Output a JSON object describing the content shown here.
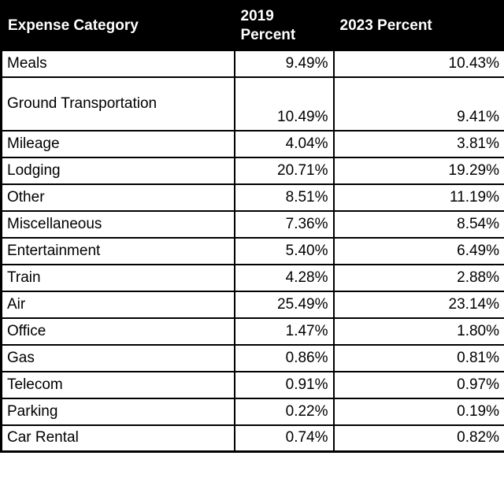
{
  "table": {
    "columns": {
      "category": "Expense Category",
      "p2019": "2019 Percent",
      "p2023": "2023 Percent"
    },
    "rows": [
      {
        "category": "Meals",
        "p2019": "9.49%",
        "p2023": "10.43%"
      },
      {
        "category": "Ground Transportation",
        "p2019": "10.49%",
        "p2023": "9.41%"
      },
      {
        "category": "Mileage",
        "p2019": "4.04%",
        "p2023": "3.81%"
      },
      {
        "category": "Lodging",
        "p2019": "20.71%",
        "p2023": "19.29%"
      },
      {
        "category": "Other",
        "p2019": "8.51%",
        "p2023": "11.19%"
      },
      {
        "category": "Miscellaneous",
        "p2019": "7.36%",
        "p2023": "8.54%"
      },
      {
        "category": "Entertainment",
        "p2019": "5.40%",
        "p2023": "6.49%"
      },
      {
        "category": "Train",
        "p2019": "4.28%",
        "p2023": "2.88%"
      },
      {
        "category": "Air",
        "p2019": "25.49%",
        "p2023": "23.14%"
      },
      {
        "category": "Office",
        "p2019": "1.47%",
        "p2023": "1.80%"
      },
      {
        "category": "Gas",
        "p2019": "0.86%",
        "p2023": "0.81%"
      },
      {
        "category": "Telecom",
        "p2019": "0.91%",
        "p2023": "0.97%"
      },
      {
        "category": "Parking",
        "p2019": "0.22%",
        "p2023": "0.19%"
      },
      {
        "category": "Car Rental",
        "p2019": "0.74%",
        "p2023": "0.82%"
      }
    ]
  },
  "chart_data": {
    "type": "table",
    "title": "",
    "columns": [
      "Expense Category",
      "2019 Percent",
      "2023 Percent"
    ],
    "categories": [
      "Meals",
      "Ground Transportation",
      "Mileage",
      "Lodging",
      "Other",
      "Miscellaneous",
      "Entertainment",
      "Train",
      "Air",
      "Office",
      "Gas",
      "Telecom",
      "Parking",
      "Car Rental"
    ],
    "series": [
      {
        "name": "2019 Percent",
        "values": [
          9.49,
          10.49,
          4.04,
          20.71,
          8.51,
          7.36,
          5.4,
          4.28,
          25.49,
          1.47,
          0.86,
          0.91,
          0.22,
          0.74
        ]
      },
      {
        "name": "2023 Percent",
        "values": [
          10.43,
          9.41,
          3.81,
          19.29,
          11.19,
          8.54,
          6.49,
          2.88,
          23.14,
          1.8,
          0.81,
          0.97,
          0.19,
          0.82
        ]
      }
    ],
    "unit": "%",
    "layout": {
      "header_style": "black-background-white-bold-text",
      "value_alignment": "right",
      "grid": "solid-black-borders"
    }
  },
  "colors": {
    "header_bg": "#000000",
    "header_text": "#ffffff",
    "border": "#000000",
    "row_bg": "#ffffff",
    "row_text": "#000000"
  }
}
